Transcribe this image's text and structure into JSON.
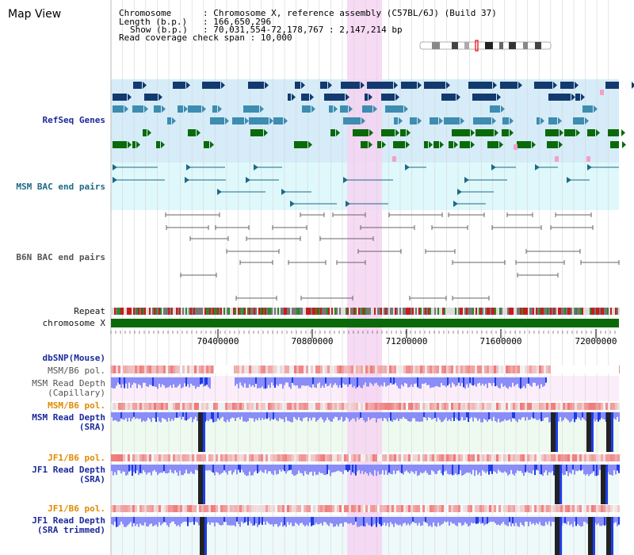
{
  "app": {
    "title": "Map View"
  },
  "header": {
    "lines": [
      {
        "key": "Chromosome",
        "value": "Chromosome X, reference assembly (C57BL/6J) (Build 37)"
      },
      {
        "key": "Length (b.p.)",
        "value": "166,650,296"
      },
      {
        "key": "Show (b.p.)",
        "value": "70,031,554-72,178,767 : 2,147,214 bp"
      },
      {
        "key": "Read coverage check span",
        "value": "10,000"
      }
    ]
  },
  "tracks": {
    "refseq": "RefSeq Genes",
    "msm_bac": "MSM BAC end pairs",
    "b6n_bac": "B6N BAC end pairs",
    "repeat": "Repeat",
    "chromosome": "chromosome X",
    "dbsnp": "dbSNP(Mouse)",
    "msm_b6_pol_1": "MSM/B6 pol.",
    "msm_depth_cap": [
      "MSM Read Depth",
      "(Capillary)"
    ],
    "msm_b6_pol_2": "MSM/B6 pol.",
    "msm_depth_sra": [
      "MSM Read Depth",
      "(SRA)"
    ],
    "jf1_b6_pol_1": "JF1/B6 pol.",
    "jf1_depth_sra": [
      "JF1 Read Depth",
      "(SRA)"
    ],
    "jf1_b6_pol_2": "JF1/B6 pol.",
    "jf1_depth_trim": [
      "JF1 Read Depth",
      "(SRA trimmed)"
    ]
  },
  "axis": {
    "ticks": [
      "70400000",
      "70800000",
      "71200000",
      "71600000",
      "72000000"
    ]
  },
  "colors": {
    "refseq_bg": "#d6ecf8",
    "msm_bac_bg": "#dff8fb",
    "highlight": "#f6d4f2",
    "gene_dark": "#123a6e",
    "gene_mid": "#3e8cb0",
    "gene_green": "#0a6a0a",
    "chrom_green": "#0a6a0a",
    "depth_blue": "#1d3ce8",
    "depth_light": "#8a8cf8",
    "depth_dark": "#222"
  }
}
